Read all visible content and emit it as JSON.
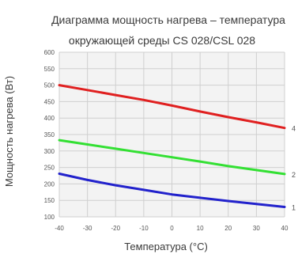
{
  "chart_data": {
    "type": "line",
    "title_lines": [
      "Диаграмма мощность нагрева – температура",
      "окружающей среды CS 028/CSL 028"
    ],
    "xlabel": "Температура (°С)",
    "ylabel": "Мощность нагрева (Вт)",
    "xlim": [
      -40,
      40
    ],
    "ylim": [
      100,
      600
    ],
    "x_ticks": [
      "-40",
      "-30",
      "-20",
      "-10",
      "0",
      "10",
      "20",
      "30",
      "40"
    ],
    "y_ticks": [
      "100",
      "150",
      "200",
      "250",
      "300",
      "350",
      "400",
      "450",
      "500",
      "550",
      "600"
    ],
    "grid": true,
    "grid_color": "#cfcfcf",
    "plot_background": "#f3f3f3",
    "x": [
      -40,
      -30,
      -20,
      -10,
      0,
      10,
      20,
      30,
      40
    ],
    "series": [
      {
        "label": "4",
        "color": "#e02020",
        "values": [
          500,
          485,
          470,
          455,
          438,
          420,
          403,
          387,
          370
        ]
      },
      {
        "label": "2",
        "color": "#33e033",
        "values": [
          333,
          320,
          307,
          294,
          281,
          268,
          254,
          242,
          230
        ]
      },
      {
        "label": "1",
        "color": "#2222cc",
        "values": [
          231,
          212,
          196,
          182,
          168,
          158,
          148,
          139,
          130
        ]
      }
    ]
  }
}
